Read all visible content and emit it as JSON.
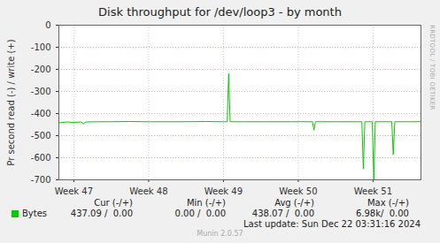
{
  "chart_data": {
    "type": "line",
    "title": "Disk throughput for /dev/loop3 - by month",
    "y_label": "Pr second read (-) / write (+)",
    "x": [
      46.8,
      46.9,
      47.0,
      47.1,
      47.13,
      47.16,
      47.3,
      47.5,
      47.75,
      48.0,
      48.25,
      48.5,
      48.75,
      49.0,
      49.05,
      49.07,
      49.09,
      49.3,
      49.6,
      49.9,
      50.19,
      50.21,
      50.23,
      50.5,
      50.85,
      50.87,
      50.89,
      50.99,
      51.01,
      51.03,
      51.25,
      51.27,
      51.29,
      51.45,
      51.64
    ],
    "series": [
      {
        "name": "Bytes",
        "color": "#00cc00",
        "values": [
          -442,
          -438,
          -440,
          -438,
          -446,
          -438,
          -437,
          -437,
          -436,
          -437,
          -437,
          -437,
          -436,
          -437,
          -437,
          -220,
          -437,
          -437,
          -437,
          -437,
          -437,
          -475,
          -437,
          -437,
          -437,
          -650,
          -437,
          -437,
          -700,
          -437,
          -437,
          -585,
          -437,
          -437,
          -437
        ],
        "stats": [
          "437.09 /  0.00",
          "0.00 /  0.00",
          "438.07 /  0.00",
          "6.98k/  0.00"
        ]
      }
    ],
    "stats_headers": [
      "Cur (-/+)",
      "Min (-/+)",
      "Avg (-/+)",
      "Max (-/+)"
    ],
    "xlim": [
      46.8,
      51.64
    ],
    "xticks": [
      {
        "value": 47,
        "label": "Week 47"
      },
      {
        "value": 48,
        "label": "Week 48"
      },
      {
        "value": 49,
        "label": "Week 49"
      },
      {
        "value": 50,
        "label": "Week 50"
      },
      {
        "value": 51,
        "label": "Week 51"
      }
    ],
    "ylim": [
      -700,
      0
    ],
    "yticks": [
      0,
      -100,
      -200,
      -300,
      -400,
      -500,
      -600,
      -700
    ],
    "grid": true,
    "annotations": [
      "RRDTOOL / TOBI OETIKER",
      "Last update: Sun Dec 22 03:31:16 2024",
      "Munin 2.0.57"
    ]
  }
}
